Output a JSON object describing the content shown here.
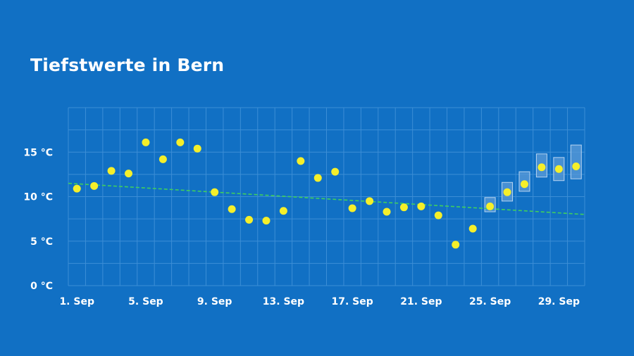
{
  "chart_data": {
    "type": "scatter",
    "title": "Tiefstwerte in Bern",
    "xlabel": "",
    "ylabel": "",
    "y_ticks": [
      {
        "value": 0,
        "label": "0 °C"
      },
      {
        "value": 5,
        "label": "5 °C"
      },
      {
        "value": 10,
        "label": "10 °C"
      },
      {
        "value": 15,
        "label": "15 °C"
      }
    ],
    "x_ticks": [
      {
        "day": 1,
        "label": "1. Sep"
      },
      {
        "day": 5,
        "label": "5. Sep"
      },
      {
        "day": 9,
        "label": "9. Sep"
      },
      {
        "day": 13,
        "label": "13. Sep"
      },
      {
        "day": 17,
        "label": "17. Sep"
      },
      {
        "day": 21,
        "label": "21. Sep"
      },
      {
        "day": 25,
        "label": "25. Sep"
      },
      {
        "day": 29,
        "label": "29. Sep"
      }
    ],
    "xlim": [
      0.5,
      30.5
    ],
    "ylim": [
      0,
      20
    ],
    "grid": true,
    "observed": [
      {
        "day": 1,
        "value": 10.9
      },
      {
        "day": 2,
        "value": 11.2
      },
      {
        "day": 3,
        "value": 12.9
      },
      {
        "day": 4,
        "value": 12.6
      },
      {
        "day": 5,
        "value": 16.1
      },
      {
        "day": 6,
        "value": 14.2
      },
      {
        "day": 7,
        "value": 16.1
      },
      {
        "day": 8,
        "value": 15.4
      },
      {
        "day": 9,
        "value": 10.5
      },
      {
        "day": 10,
        "value": 8.6
      },
      {
        "day": 11,
        "value": 7.4
      },
      {
        "day": 12,
        "value": 7.3
      },
      {
        "day": 13,
        "value": 8.4
      },
      {
        "day": 14,
        "value": 14.0
      },
      {
        "day": 15,
        "value": 12.1
      },
      {
        "day": 16,
        "value": 12.8
      },
      {
        "day": 17,
        "value": 8.7
      },
      {
        "day": 18,
        "value": 9.5
      },
      {
        "day": 19,
        "value": 8.3
      },
      {
        "day": 20,
        "value": 8.8
      },
      {
        "day": 21,
        "value": 8.9
      },
      {
        "day": 22,
        "value": 7.9
      },
      {
        "day": 23,
        "value": 4.6
      },
      {
        "day": 24,
        "value": 6.4
      }
    ],
    "forecast": [
      {
        "day": 25,
        "value": 8.9,
        "low": 8.3,
        "high": 9.9
      },
      {
        "day": 26,
        "value": 10.5,
        "low": 9.5,
        "high": 11.6
      },
      {
        "day": 27,
        "value": 11.4,
        "low": 10.6,
        "high": 12.8
      },
      {
        "day": 28,
        "value": 13.3,
        "low": 12.2,
        "high": 14.8
      },
      {
        "day": 29,
        "value": 13.1,
        "low": 11.8,
        "high": 14.4
      },
      {
        "day": 30,
        "value": 13.4,
        "low": 12.0,
        "high": 15.8
      }
    ],
    "trend": {
      "start": {
        "day": 0.5,
        "value": 11.5
      },
      "end": {
        "day": 30.5,
        "value": 8.0
      }
    },
    "colors": {
      "background": "#1170c4",
      "point": "#f5ef2a",
      "trend": "#3fcf5e",
      "grid": "#3c8ed6",
      "range_fill": "#5b9bd8",
      "range_stroke": "#b7d4f0",
      "text": "#ffffff"
    }
  }
}
